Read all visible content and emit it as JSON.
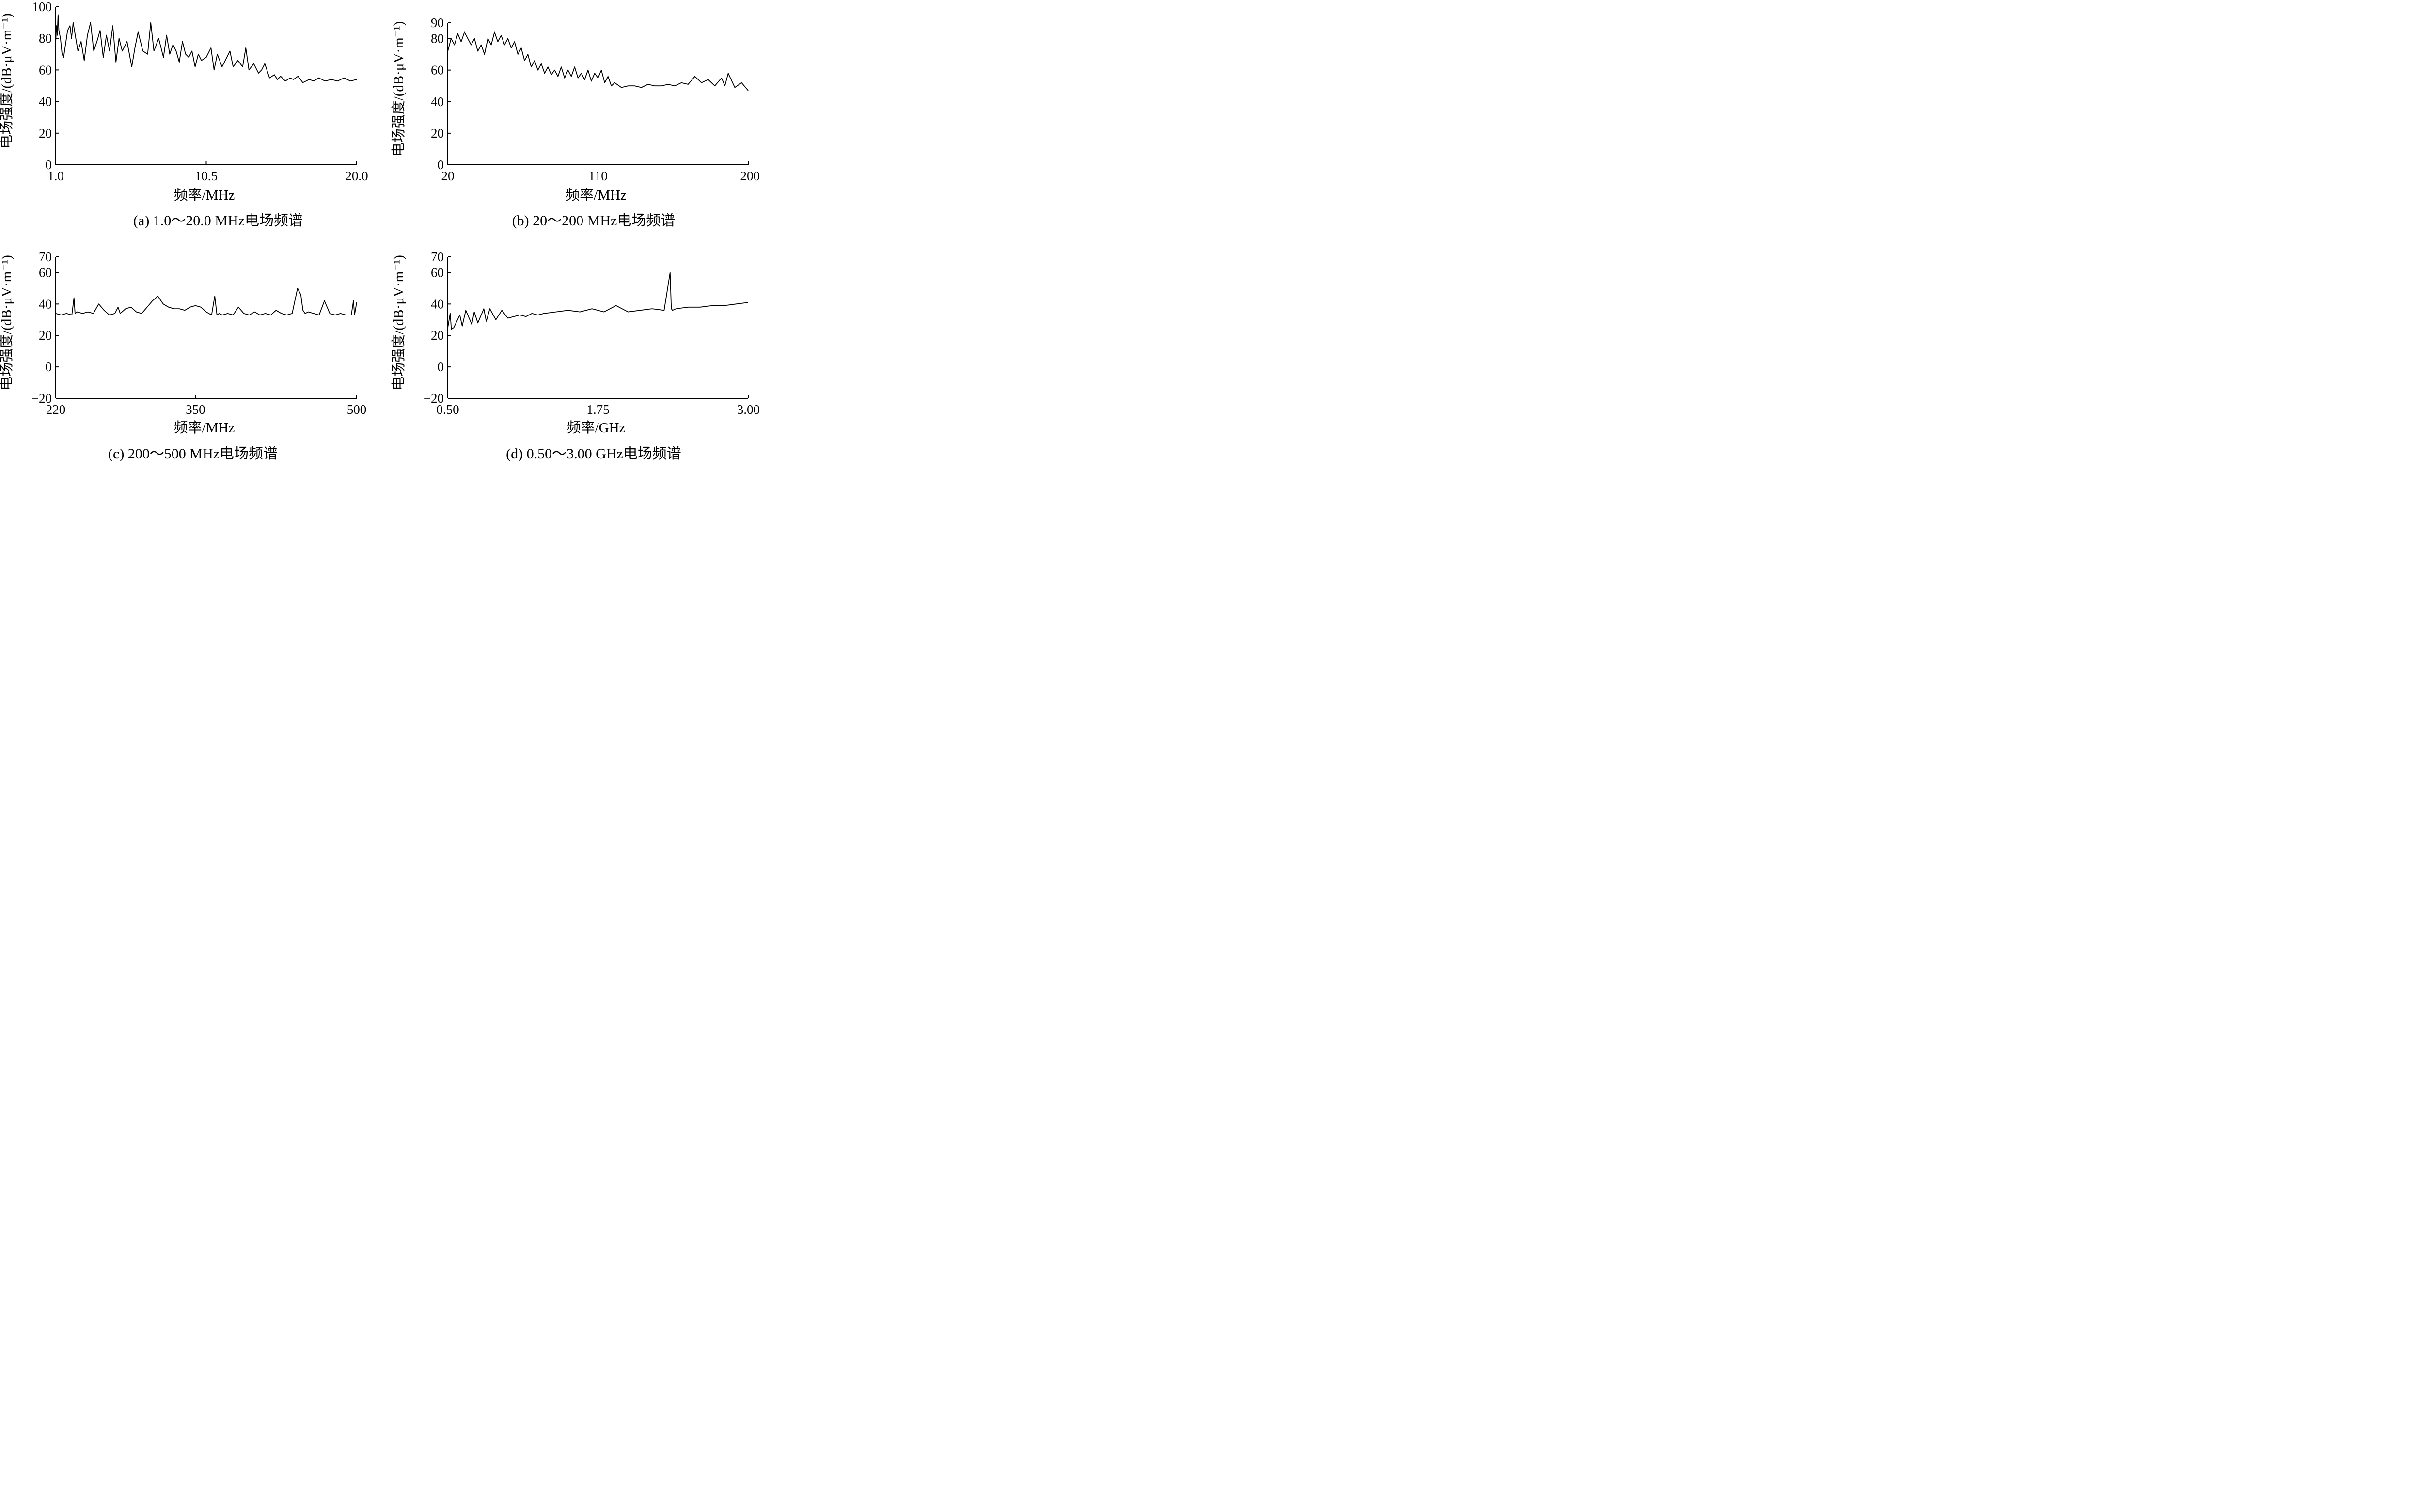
{
  "chart_data": [
    {
      "type": "line",
      "caption": "(a) 1.0～20.0 MHz电场频谱",
      "xlabel": "频率/MHz",
      "ylabel": "电场强度/(dB·μV·m⁻¹)",
      "xlim": [
        1.0,
        20.0
      ],
      "ylim": [
        0,
        100
      ],
      "x_ticks": [
        {
          "value": 1.0,
          "label": "1.0"
        },
        {
          "value": 10.5,
          "label": "10.5"
        },
        {
          "value": 20.0,
          "label": "20.0"
        }
      ],
      "y_ticks": [
        {
          "value": 0,
          "label": "0"
        },
        {
          "value": 20,
          "label": "20"
        },
        {
          "value": 40,
          "label": "40"
        },
        {
          "value": 60,
          "label": "60"
        },
        {
          "value": 80,
          "label": "80"
        },
        {
          "value": 100,
          "label": "100"
        }
      ],
      "grid": false,
      "series": [
        {
          "x": [
            1.0,
            1.05,
            1.1,
            1.15,
            1.2,
            1.3,
            1.4,
            1.5,
            1.6,
            1.75,
            1.9,
            2.0,
            2.1,
            2.2,
            2.4,
            2.6,
            2.8,
            3.0,
            3.2,
            3.4,
            3.6,
            3.8,
            4.0,
            4.2,
            4.4,
            4.6,
            4.8,
            5.0,
            5.2,
            5.5,
            5.8,
            6.0,
            6.2,
            6.5,
            6.8,
            7.0,
            7.2,
            7.5,
            7.8,
            8.0,
            8.2,
            8.4,
            8.6,
            8.8,
            9.0,
            9.2,
            9.4,
            9.6,
            9.8,
            10.0,
            10.2,
            10.5,
            10.8,
            11.0,
            11.2,
            11.5,
            11.8,
            12.0,
            12.2,
            12.5,
            12.8,
            13.0,
            13.2,
            13.5,
            13.8,
            14.0,
            14.2,
            14.5,
            14.8,
            15.0,
            15.2,
            15.5,
            15.8,
            16.0,
            16.3,
            16.6,
            17.0,
            17.3,
            17.6,
            18.0,
            18.4,
            18.8,
            19.2,
            19.6,
            20.0
          ],
          "y": [
            78,
            88,
            82,
            95,
            85,
            80,
            70,
            68,
            75,
            85,
            88,
            80,
            90,
            84,
            72,
            78,
            66,
            82,
            90,
            72,
            78,
            85,
            68,
            82,
            72,
            88,
            65,
            80,
            72,
            78,
            62,
            74,
            84,
            72,
            70,
            90,
            72,
            80,
            68,
            82,
            70,
            76,
            72,
            65,
            78,
            70,
            68,
            72,
            62,
            70,
            66,
            68,
            74,
            60,
            70,
            62,
            68,
            72,
            62,
            66,
            62,
            74,
            60,
            64,
            58,
            60,
            64,
            55,
            57,
            54,
            56,
            53,
            55,
            54,
            56,
            52,
            54,
            53,
            55,
            53,
            54,
            53,
            55,
            53,
            54
          ]
        }
      ]
    },
    {
      "type": "line",
      "caption": "(b)  20～200 MHz电场频谱",
      "xlabel": "频率/MHz",
      "ylabel": "电场强度/(dB·μV·m⁻¹)",
      "xlim": [
        20,
        200
      ],
      "ylim": [
        0,
        90
      ],
      "x_ticks": [
        {
          "value": 20,
          "label": "20"
        },
        {
          "value": 110,
          "label": "110"
        },
        {
          "value": 200,
          "label": "200"
        }
      ],
      "y_ticks": [
        {
          "value": 0,
          "label": "0"
        },
        {
          "value": 20,
          "label": "20"
        },
        {
          "value": 40,
          "label": "40"
        },
        {
          "value": 60,
          "label": "60"
        },
        {
          "value": 80,
          "label": "80"
        },
        {
          "value": 90,
          "label": "90"
        }
      ],
      "grid": false,
      "series": [
        {
          "x": [
            20,
            22,
            24,
            26,
            28,
            30,
            32,
            34,
            36,
            38,
            40,
            42,
            44,
            46,
            48,
            50,
            52,
            54,
            56,
            58,
            60,
            62,
            64,
            66,
            68,
            70,
            72,
            74,
            76,
            78,
            80,
            82,
            84,
            86,
            88,
            90,
            92,
            94,
            96,
            98,
            100,
            102,
            104,
            106,
            108,
            110,
            112,
            114,
            116,
            118,
            120,
            124,
            128,
            132,
            136,
            140,
            144,
            148,
            152,
            156,
            160,
            164,
            168,
            172,
            176,
            180,
            184,
            186,
            188,
            192,
            196,
            200
          ],
          "y": [
            72,
            80,
            76,
            83,
            78,
            84,
            80,
            76,
            80,
            72,
            76,
            70,
            80,
            76,
            84,
            78,
            82,
            76,
            80,
            74,
            78,
            70,
            74,
            66,
            70,
            62,
            66,
            60,
            64,
            58,
            62,
            57,
            60,
            56,
            62,
            55,
            60,
            56,
            62,
            55,
            58,
            54,
            60,
            53,
            58,
            55,
            60,
            52,
            56,
            50,
            52,
            49,
            50,
            50,
            49,
            51,
            50,
            50,
            51,
            50,
            52,
            51,
            56,
            52,
            54,
            50,
            55,
            50,
            58,
            49,
            52,
            47
          ]
        }
      ]
    },
    {
      "type": "line",
      "caption": "(c)  200～500 MHz电场频谱",
      "xlabel": "频率/MHz",
      "ylabel": "电场强度/(dB·μV·m⁻¹)",
      "xlim": [
        220,
        500
      ],
      "ylim": [
        -20,
        70
      ],
      "x_ticks": [
        {
          "value": 220,
          "label": "220"
        },
        {
          "value": 350,
          "label": "350"
        },
        {
          "value": 500,
          "label": "500"
        }
      ],
      "y_ticks": [
        {
          "value": -20,
          "label": "−20"
        },
        {
          "value": 0,
          "label": "0"
        },
        {
          "value": 20,
          "label": "20"
        },
        {
          "value": 40,
          "label": "40"
        },
        {
          "value": 60,
          "label": "60"
        },
        {
          "value": 70,
          "label": "70"
        }
      ],
      "grid": false,
      "series": [
        {
          "x": [
            220,
            225,
            230,
            235,
            237,
            238,
            240,
            245,
            250,
            255,
            260,
            265,
            270,
            275,
            278,
            280,
            285,
            290,
            295,
            300,
            305,
            310,
            315,
            320,
            325,
            330,
            335,
            340,
            345,
            350,
            355,
            360,
            365,
            368,
            370,
            372,
            375,
            380,
            385,
            390,
            395,
            400,
            405,
            410,
            415,
            420,
            425,
            430,
            435,
            440,
            445,
            448,
            450,
            452,
            455,
            460,
            465,
            470,
            475,
            480,
            485,
            490,
            495,
            497,
            498,
            500
          ],
          "y": [
            34,
            33,
            34,
            33,
            44,
            34,
            35,
            34,
            35,
            34,
            40,
            36,
            33,
            34,
            38,
            34,
            37,
            38,
            35,
            34,
            38,
            42,
            45,
            40,
            38,
            37,
            37,
            36,
            38,
            39,
            38,
            35,
            33,
            45,
            33,
            34,
            33,
            34,
            33,
            38,
            34,
            33,
            35,
            33,
            34,
            33,
            36,
            34,
            33,
            34,
            50,
            46,
            36,
            34,
            35,
            34,
            33,
            42,
            34,
            33,
            34,
            33,
            33,
            42,
            33,
            41
          ]
        }
      ]
    },
    {
      "type": "line",
      "caption": "(d)  0.50～3.00 GHz电场频谱",
      "xlabel": "频率/GHz",
      "ylabel": "电场强度/(dB·μV·m⁻¹)",
      "xlim": [
        0.5,
        3.0
      ],
      "ylim": [
        -20,
        70
      ],
      "x_ticks": [
        {
          "value": 0.5,
          "label": "0.50"
        },
        {
          "value": 1.75,
          "label": "1.75"
        },
        {
          "value": 3.0,
          "label": "3.00"
        }
      ],
      "y_ticks": [
        {
          "value": -20,
          "label": "−20"
        },
        {
          "value": 0,
          "label": "0"
        },
        {
          "value": 20,
          "label": "20"
        },
        {
          "value": 40,
          "label": "40"
        },
        {
          "value": 60,
          "label": "60"
        },
        {
          "value": 70,
          "label": "70"
        }
      ],
      "grid": false,
      "series": [
        {
          "x": [
            0.5,
            0.52,
            0.53,
            0.55,
            0.6,
            0.62,
            0.65,
            0.7,
            0.72,
            0.75,
            0.8,
            0.82,
            0.85,
            0.9,
            0.95,
            1.0,
            1.05,
            1.1,
            1.15,
            1.2,
            1.25,
            1.3,
            1.4,
            1.5,
            1.6,
            1.7,
            1.8,
            1.9,
            2.0,
            2.1,
            2.2,
            2.3,
            2.35,
            2.36,
            2.37,
            2.4,
            2.5,
            2.6,
            2.7,
            2.8,
            2.9,
            3.0
          ],
          "y": [
            25,
            34,
            24,
            25,
            33,
            26,
            36,
            27,
            35,
            28,
            37,
            29,
            37,
            30,
            36,
            31,
            32,
            33,
            32,
            34,
            33,
            34,
            35,
            36,
            35,
            37,
            35,
            39,
            35,
            36,
            37,
            36,
            60,
            37,
            36,
            37,
            38,
            38,
            39,
            39,
            40,
            41
          ]
        }
      ]
    }
  ]
}
